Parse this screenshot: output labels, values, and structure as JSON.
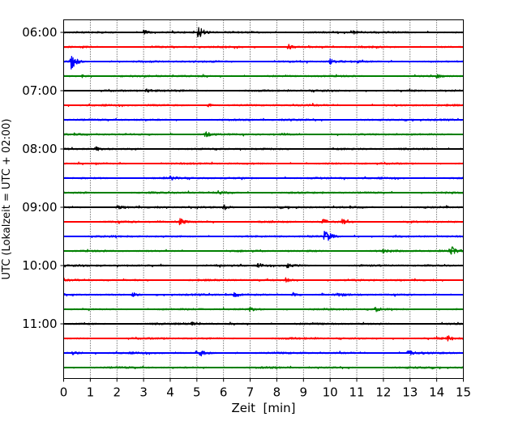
{
  "chart_data": {
    "type": "line",
    "title": "",
    "xlabel": "Zeit  [min]",
    "ylabel": "UTC (Lokalzeit = UTC + 02:00)",
    "xlim": [
      0,
      15
    ],
    "x_ticks": [
      0,
      1,
      2,
      3,
      4,
      5,
      6,
      7,
      8,
      9,
      10,
      11,
      12,
      13,
      14,
      15
    ],
    "y_tick_labels": [
      "06:00",
      "07:00",
      "08:00",
      "09:00",
      "10:00",
      "11:00"
    ],
    "trace_interval_min": 15,
    "grid": "vertical dotted",
    "colors": [
      "#000000",
      "#ff0000",
      "#0000ff",
      "#008000"
    ],
    "traces": [
      {
        "start": "06:00",
        "color": "#000000",
        "events": [
          {
            "t": 5.05,
            "amp": 1.0
          },
          {
            "t": 3.0,
            "amp": 0.35
          },
          {
            "t": 10.8,
            "amp": 0.3
          }
        ]
      },
      {
        "start": "06:15",
        "color": "#ff0000",
        "events": [
          {
            "t": 8.4,
            "amp": 0.4
          }
        ]
      },
      {
        "start": "06:30",
        "color": "#0000ff",
        "events": [
          {
            "t": 0.28,
            "amp": 1.1
          },
          {
            "t": 10.0,
            "amp": 0.35
          }
        ]
      },
      {
        "start": "06:45",
        "color": "#008000",
        "events": [
          {
            "t": 0.7,
            "amp": 0.35
          },
          {
            "t": 14.0,
            "amp": 0.35
          }
        ]
      },
      {
        "start": "07:00",
        "color": "#000000",
        "events": [
          {
            "t": 3.1,
            "amp": 0.3
          }
        ]
      },
      {
        "start": "07:15",
        "color": "#ff0000",
        "events": [
          {
            "t": 5.4,
            "amp": 0.25
          }
        ]
      },
      {
        "start": "07:30",
        "color": "#0000ff",
        "events": []
      },
      {
        "start": "07:45",
        "color": "#008000",
        "events": [
          {
            "t": 5.3,
            "amp": 0.35
          }
        ]
      },
      {
        "start": "08:00",
        "color": "#000000",
        "events": [
          {
            "t": 1.2,
            "amp": 0.25
          }
        ]
      },
      {
        "start": "08:15",
        "color": "#ff0000",
        "events": []
      },
      {
        "start": "08:30",
        "color": "#0000ff",
        "events": [
          {
            "t": 4.0,
            "amp": 0.25
          }
        ]
      },
      {
        "start": "08:45",
        "color": "#008000",
        "events": [
          {
            "t": 5.8,
            "amp": 0.25
          }
        ]
      },
      {
        "start": "09:00",
        "color": "#000000",
        "events": [
          {
            "t": 6.0,
            "amp": 0.4
          },
          {
            "t": 2.0,
            "amp": 0.25
          }
        ]
      },
      {
        "start": "09:15",
        "color": "#ff0000",
        "events": [
          {
            "t": 4.35,
            "amp": 0.45
          },
          {
            "t": 9.7,
            "amp": 0.4
          },
          {
            "t": 10.45,
            "amp": 0.35
          }
        ]
      },
      {
        "start": "09:30",
        "color": "#0000ff",
        "events": [
          {
            "t": 9.8,
            "amp": 1.1
          }
        ]
      },
      {
        "start": "09:45",
        "color": "#008000",
        "events": [
          {
            "t": 14.5,
            "amp": 0.85
          },
          {
            "t": 12.0,
            "amp": 0.25
          }
        ]
      },
      {
        "start": "10:00",
        "color": "#000000",
        "events": [
          {
            "t": 7.3,
            "amp": 0.3
          },
          {
            "t": 8.4,
            "amp": 0.3
          }
        ]
      },
      {
        "start": "10:15",
        "color": "#ff0000",
        "events": [
          {
            "t": 8.3,
            "amp": 0.3
          }
        ]
      },
      {
        "start": "10:30",
        "color": "#0000ff",
        "events": [
          {
            "t": 2.6,
            "amp": 0.3
          },
          {
            "t": 6.4,
            "amp": 0.3
          },
          {
            "t": 8.6,
            "amp": 0.3
          },
          {
            "t": 10.3,
            "amp": 0.3
          }
        ]
      },
      {
        "start": "10:45",
        "color": "#008000",
        "events": [
          {
            "t": 7.0,
            "amp": 0.3
          },
          {
            "t": 11.7,
            "amp": 0.3
          }
        ]
      },
      {
        "start": "11:00",
        "color": "#000000",
        "events": [
          {
            "t": 4.8,
            "amp": 0.2
          }
        ]
      },
      {
        "start": "11:15",
        "color": "#ff0000",
        "events": [
          {
            "t": 14.4,
            "amp": 0.35
          }
        ]
      },
      {
        "start": "11:30",
        "color": "#0000ff",
        "events": [
          {
            "t": 5.0,
            "amp": 0.85
          },
          {
            "t": 0.35,
            "amp": 0.3
          },
          {
            "t": 12.9,
            "amp": 0.4
          }
        ]
      },
      {
        "start": "11:45",
        "color": "#008000",
        "events": []
      }
    ]
  }
}
